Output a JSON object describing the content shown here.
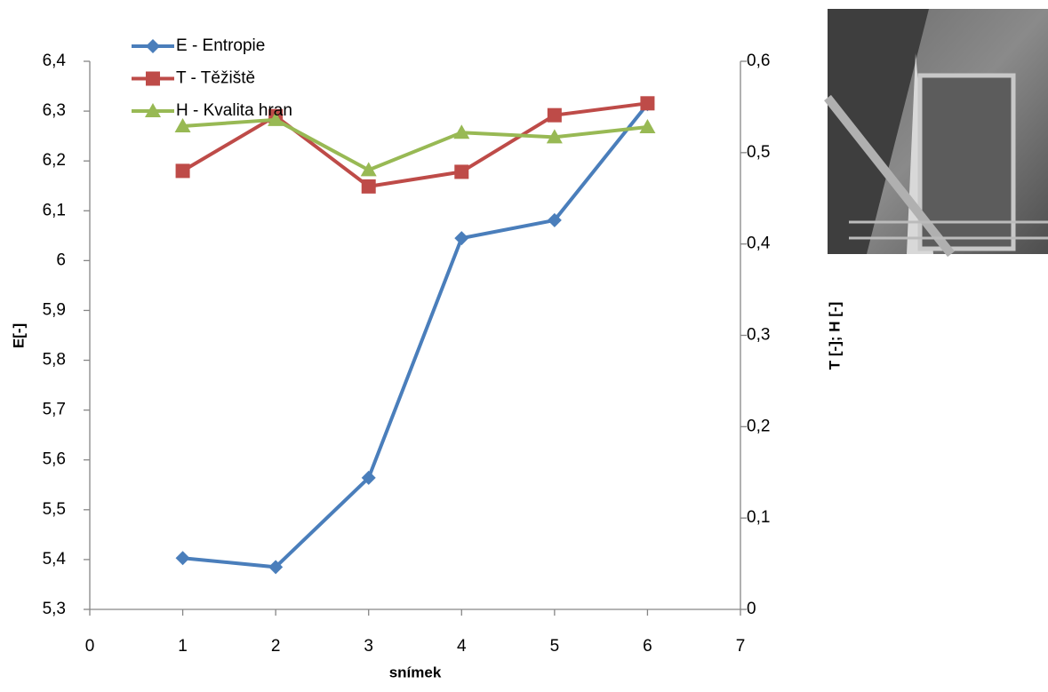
{
  "chart_data": {
    "type": "line",
    "x": [
      1,
      2,
      3,
      4,
      5,
      6
    ],
    "xlabel": "snímek",
    "ylabel": "E[-]",
    "y2label": "T [-]; H [-]",
    "xlim": [
      0,
      7
    ],
    "xticks": [
      0,
      1,
      2,
      3,
      4,
      5,
      6,
      7
    ],
    "ylim": [
      5.3,
      6.4
    ],
    "yticks": [
      {
        "value": 5.3,
        "label": "5,3"
      },
      {
        "value": 5.4,
        "label": "5,4"
      },
      {
        "value": 5.5,
        "label": "5,5"
      },
      {
        "value": 5.6,
        "label": "5,6"
      },
      {
        "value": 5.7,
        "label": "5,7"
      },
      {
        "value": 5.8,
        "label": "5,8"
      },
      {
        "value": 5.9,
        "label": "5,9"
      },
      6,
      {
        "value": 6.1,
        "label": "6,1"
      },
      {
        "value": 6.2,
        "label": "6,2"
      },
      {
        "value": 6.3,
        "label": "6,3"
      },
      {
        "value": 6.4,
        "label": "6,4"
      }
    ],
    "y2lim": [
      0,
      0.6
    ],
    "y2ticks": [
      0,
      {
        "value": 0.1,
        "label": "0,1"
      },
      {
        "value": 0.2,
        "label": "0,2"
      },
      {
        "value": 0.3,
        "label": "0,3"
      },
      {
        "value": 0.4,
        "label": "0,4"
      },
      {
        "value": 0.5,
        "label": "0,5"
      },
      {
        "value": 0.6,
        "label": "0,6"
      }
    ],
    "legend": "upper left",
    "grid": false,
    "series": [
      {
        "name": "E - Entropie",
        "color": "#4a7ebb",
        "marker": "diamond",
        "values": [
          5.403,
          5.385,
          5.564,
          6.045,
          6.081,
          6.314
        ]
      },
      {
        "name": "T - Těžiště",
        "color": "#be4b48",
        "marker": "square",
        "axis": "y2",
        "values": [
          0.48,
          0.54,
          0.463,
          0.479,
          0.541,
          0.554
        ]
      },
      {
        "name": "H - Kvalita hran",
        "color": "#98b954",
        "marker": "triangle",
        "axis": "y2",
        "values": [
          0.529,
          0.536,
          0.481,
          0.522,
          0.517,
          0.528
        ]
      }
    ]
  }
}
